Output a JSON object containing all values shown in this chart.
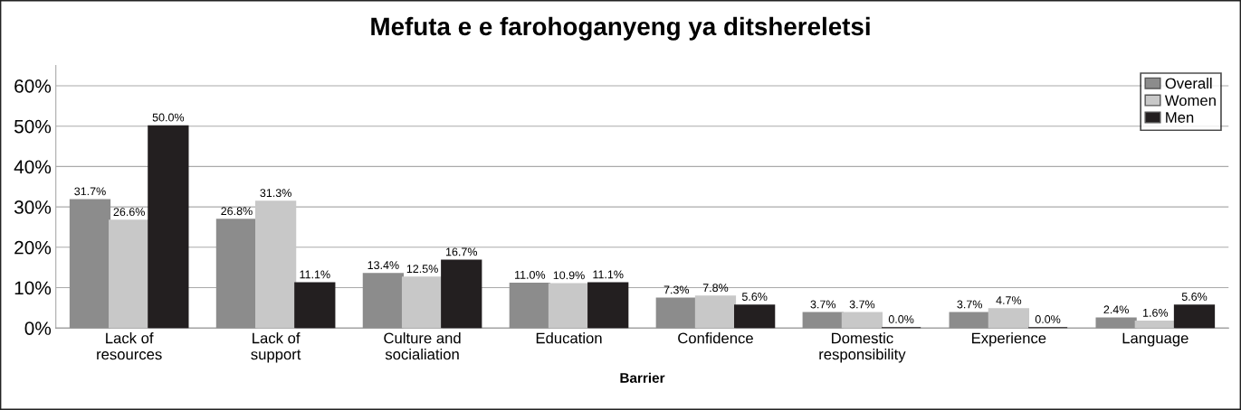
{
  "chart_data": {
    "type": "bar",
    "title": "Mefuta e e farohoganyeng ya ditshereletsi",
    "xlabel": "Barrier",
    "categories": [
      "Lack of\nresources",
      "Lack of\nsupport",
      "Culture and\nsocialiation",
      "Education",
      "Confidence",
      "Domestic\nresponsibility",
      "Experience",
      "Language"
    ],
    "series": [
      {
        "name": "Overall",
        "color": "#8c8c8c",
        "values": [
          31.7,
          26.8,
          13.4,
          11.0,
          7.3,
          3.7,
          3.7,
          2.4
        ],
        "value_labels": [
          "31.7%",
          "26.8%",
          "13.4%",
          "11.0%",
          "7.3%",
          "3.7%",
          "3.7%",
          "2.4%"
        ]
      },
      {
        "name": "Women",
        "color": "#c8c8c8",
        "values": [
          26.6,
          31.3,
          12.5,
          10.9,
          7.8,
          3.7,
          4.7,
          1.6
        ],
        "value_labels": [
          "26.6%",
          "31.3%",
          "12.5%",
          "10.9%",
          "7.8%",
          "3.7%",
          "4.7%",
          "1.6%"
        ]
      },
      {
        "name": "Men",
        "color": "#231f20",
        "values": [
          50.0,
          11.1,
          16.7,
          11.1,
          5.6,
          0.0,
          0.0,
          5.6
        ],
        "value_labels": [
          "50.0%",
          "11.1%",
          "16.7%",
          "11.1%",
          "5.6%",
          "0.0%",
          "0.0%",
          "5.6%"
        ]
      }
    ],
    "ylim": [
      0,
      65
    ],
    "yticks": [
      {
        "value": 0,
        "label": "0%"
      },
      {
        "value": 10,
        "label": "10%"
      },
      {
        "value": 20,
        "label": "20%"
      },
      {
        "value": 30,
        "label": "30%"
      },
      {
        "value": 40,
        "label": "40%"
      },
      {
        "value": 50,
        "label": "50%"
      },
      {
        "value": 60,
        "label": "60%"
      }
    ],
    "grid": "y",
    "legend": "top right"
  }
}
